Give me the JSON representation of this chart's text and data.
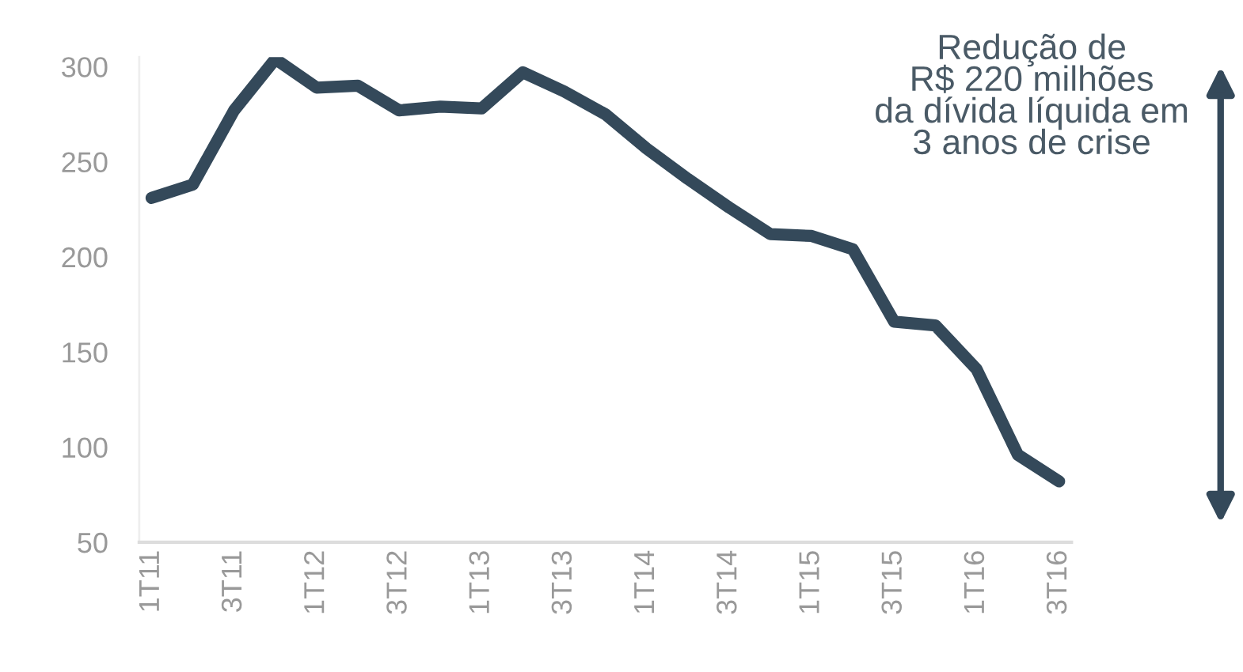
{
  "chart_data": {
    "type": "line",
    "categories": [
      "1T11",
      null,
      "3T11",
      null,
      "1T12",
      null,
      "3T12",
      null,
      "1T13",
      null,
      "3T13",
      null,
      "1T14",
      null,
      "3T14",
      null,
      "1T15",
      null,
      "3T15",
      null,
      "1T16",
      null,
      "3T16"
    ],
    "series": [
      {
        "color": "#34495a",
        "values": [
          231,
          238,
          277,
          304,
          289,
          290,
          277,
          279,
          278,
          297,
          287,
          275,
          257,
          241,
          226,
          212,
          211,
          204,
          166,
          164,
          141,
          96,
          82
        ]
      }
    ],
    "ylim": [
      50,
      305
    ],
    "yticks": [
      50,
      100,
      150,
      200,
      250,
      300
    ],
    "annotations": [
      "Redução de\nR$ 220 milhões\nda dívida líquida em\n3 anos de crise"
    ],
    "grid": false,
    "legend": false,
    "marker": "none",
    "line_style": "solid"
  }
}
